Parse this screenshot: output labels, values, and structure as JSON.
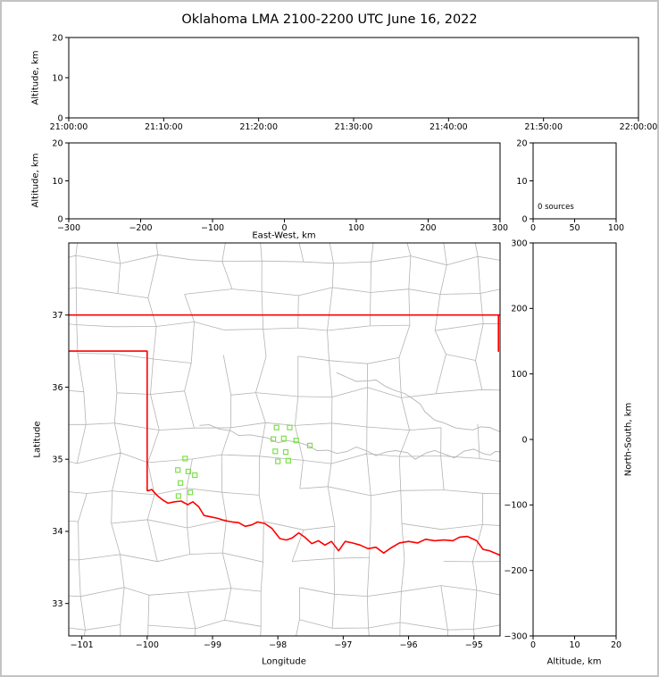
{
  "title": "Oklahoma LMA 2100-2200 UTC June 16, 2022",
  "labels": {
    "time_ylabel": "Altitude, km",
    "ew_ylabel": "Altitude, km",
    "ew_xlabel": "East-West, km",
    "map_ylabel": "Latitude",
    "map_xlabel": "Longitude",
    "ns_ylabel": "North-South, km",
    "ns_xlabel": "Altitude, km",
    "hist_annotation": "0 sources"
  },
  "axes": {
    "time": {
      "xticks": [
        "21:00:00",
        "21:10:00",
        "21:20:00",
        "21:30:00",
        "21:40:00",
        "21:50:00",
        "22:00:00"
      ],
      "yticks": [
        0,
        10,
        20
      ],
      "ylim": [
        0,
        20
      ]
    },
    "ew": {
      "xticks": [
        -300,
        -200,
        -100,
        0,
        100,
        200,
        300
      ],
      "xlim": [
        -300,
        300
      ],
      "yticks": [
        0,
        10,
        20
      ],
      "ylim": [
        0,
        20
      ]
    },
    "hist": {
      "xticks": [
        0,
        50,
        100
      ],
      "xlim": [
        0,
        100
      ],
      "yticks": [
        0,
        10,
        20
      ],
      "ylim": [
        0,
        20
      ]
    },
    "map": {
      "xticks": [
        -101,
        -100,
        -99,
        -98,
        -97,
        -96,
        -95
      ],
      "xlim": [
        -101.2,
        -94.6
      ],
      "yticks": [
        33,
        34,
        35,
        36,
        37
      ],
      "ylim": [
        32.55,
        38.0
      ]
    },
    "ns": {
      "xticks": [
        0,
        10,
        20
      ],
      "xlim": [
        0,
        20
      ],
      "yticks": [
        -300,
        -200,
        -100,
        0,
        100,
        200,
        300
      ],
      "ylim": [
        -300,
        300
      ]
    }
  },
  "colors": {
    "background": "#ffffff",
    "outer_border": "#c3c3c3",
    "panel_frame": "#000000",
    "county_lines": "#b4b4b4",
    "rivers": "#b4b4b4",
    "state_border": "#ff0000",
    "station_marker": "#7de04b"
  },
  "chart_data": {
    "type": "scatter",
    "title": "Oklahoma LMA 2100-2200 UTC June 16, 2022",
    "time_range_utc": [
      "21:00:00",
      "22:00:00"
    ],
    "altitude_range_km": [
      0,
      20
    ],
    "source_count": 0,
    "lma_stations_lonlat": [
      [
        -98.02,
        35.44
      ],
      [
        -97.82,
        35.44
      ],
      [
        -98.07,
        35.28
      ],
      [
        -97.91,
        35.29
      ],
      [
        -97.72,
        35.26
      ],
      [
        -98.04,
        35.11
      ],
      [
        -97.88,
        35.1
      ],
      [
        -97.51,
        35.19
      ],
      [
        -98.0,
        34.97
      ],
      [
        -97.84,
        34.98
      ],
      [
        -99.42,
        35.01
      ],
      [
        -99.53,
        34.85
      ],
      [
        -99.37,
        34.83
      ],
      [
        -99.27,
        34.78
      ],
      [
        -99.49,
        34.67
      ],
      [
        -99.34,
        34.54
      ],
      [
        -99.52,
        34.49
      ]
    ],
    "map_geometry": {
      "state_border_segments": [
        {
          "name": "oklahoma-north-border",
          "points": [
            [
              -101.2,
              37.0
            ],
            [
              -94.6,
              37.0
            ]
          ]
        },
        {
          "name": "oklahoma-east-border",
          "points": [
            [
              -94.625,
              37.0
            ],
            [
              -94.625,
              36.49
            ]
          ]
        },
        {
          "name": "oklahoma-panhandle-west-border",
          "points": [
            [
              -101.2,
              36.5
            ],
            [
              -100.0,
              36.5
            ],
            [
              -100.0,
              34.56
            ]
          ]
        },
        {
          "name": "oklahoma-red-river-border",
          "points": [
            [
              -100.0,
              34.56
            ],
            [
              -99.93,
              34.58
            ],
            [
              -99.85,
              34.5
            ],
            [
              -99.77,
              34.44
            ],
            [
              -99.68,
              34.39
            ],
            [
              -99.58,
              34.41
            ],
            [
              -99.48,
              34.42
            ],
            [
              -99.38,
              34.37
            ],
            [
              -99.3,
              34.41
            ],
            [
              -99.21,
              34.34
            ],
            [
              -99.13,
              34.22
            ],
            [
              -99.02,
              34.2
            ],
            [
              -98.92,
              34.18
            ],
            [
              -98.82,
              34.15
            ],
            [
              -98.7,
              34.13
            ],
            [
              -98.6,
              34.12
            ],
            [
              -98.5,
              34.07
            ],
            [
              -98.4,
              34.09
            ],
            [
              -98.31,
              34.13
            ],
            [
              -98.2,
              34.11
            ],
            [
              -98.09,
              34.04
            ],
            [
              -97.97,
              33.9
            ],
            [
              -97.87,
              33.88
            ],
            [
              -97.78,
              33.91
            ],
            [
              -97.68,
              33.98
            ],
            [
              -97.59,
              33.92
            ],
            [
              -97.48,
              33.83
            ],
            [
              -97.38,
              33.87
            ],
            [
              -97.28,
              33.81
            ],
            [
              -97.18,
              33.86
            ],
            [
              -97.07,
              33.73
            ],
            [
              -96.97,
              33.86
            ],
            [
              -96.86,
              33.84
            ],
            [
              -96.74,
              33.81
            ],
            [
              -96.62,
              33.76
            ],
            [
              -96.5,
              33.78
            ],
            [
              -96.38,
              33.7
            ],
            [
              -96.27,
              33.77
            ],
            [
              -96.14,
              33.84
            ],
            [
              -96.0,
              33.86
            ],
            [
              -95.86,
              33.84
            ],
            [
              -95.74,
              33.89
            ],
            [
              -95.6,
              33.87
            ],
            [
              -95.46,
              33.88
            ],
            [
              -95.32,
              33.87
            ],
            [
              -95.22,
              33.92
            ],
            [
              -95.1,
              33.93
            ],
            [
              -94.96,
              33.87
            ],
            [
              -94.86,
              33.75
            ],
            [
              -94.76,
              33.73
            ],
            [
              -94.6,
              33.67
            ]
          ]
        }
      ],
      "rivers": [
        {
          "name": "canadian-river",
          "points": [
            [
              -99.2,
              35.47
            ],
            [
              -98.9,
              35.42
            ],
            [
              -98.6,
              35.33
            ],
            [
              -98.3,
              35.32
            ],
            [
              -98.0,
              35.23
            ],
            [
              -97.7,
              35.24
            ],
            [
              -97.4,
              35.12
            ],
            [
              -97.1,
              35.08
            ],
            [
              -96.8,
              35.17
            ],
            [
              -96.5,
              35.05
            ],
            [
              -96.2,
              35.12
            ],
            [
              -95.9,
              35.0
            ],
            [
              -95.6,
              35.12
            ],
            [
              -95.3,
              35.02
            ],
            [
              -95.0,
              35.14
            ],
            [
              -94.75,
              35.06
            ],
            [
              -94.6,
              35.1
            ]
          ]
        },
        {
          "name": "arkansas-river",
          "points": [
            [
              -97.1,
              36.2
            ],
            [
              -96.8,
              36.08
            ],
            [
              -96.5,
              36.1
            ],
            [
              -96.2,
              35.95
            ],
            [
              -95.95,
              35.85
            ],
            [
              -95.75,
              35.66
            ],
            [
              -95.45,
              35.5
            ],
            [
              -95.15,
              35.42
            ],
            [
              -94.9,
              35.45
            ],
            [
              -94.6,
              35.38
            ]
          ]
        }
      ],
      "county_grid": {
        "lon_start": -101.55,
        "lon_step": 0.55,
        "cols": 15,
        "lat_start": 32.25,
        "lat_step": 0.46,
        "rows": 14,
        "jitter_lon": 0.1,
        "jitter_lat": 0.08,
        "skip_prob": 0.13,
        "seed": 20220616
      }
    }
  }
}
